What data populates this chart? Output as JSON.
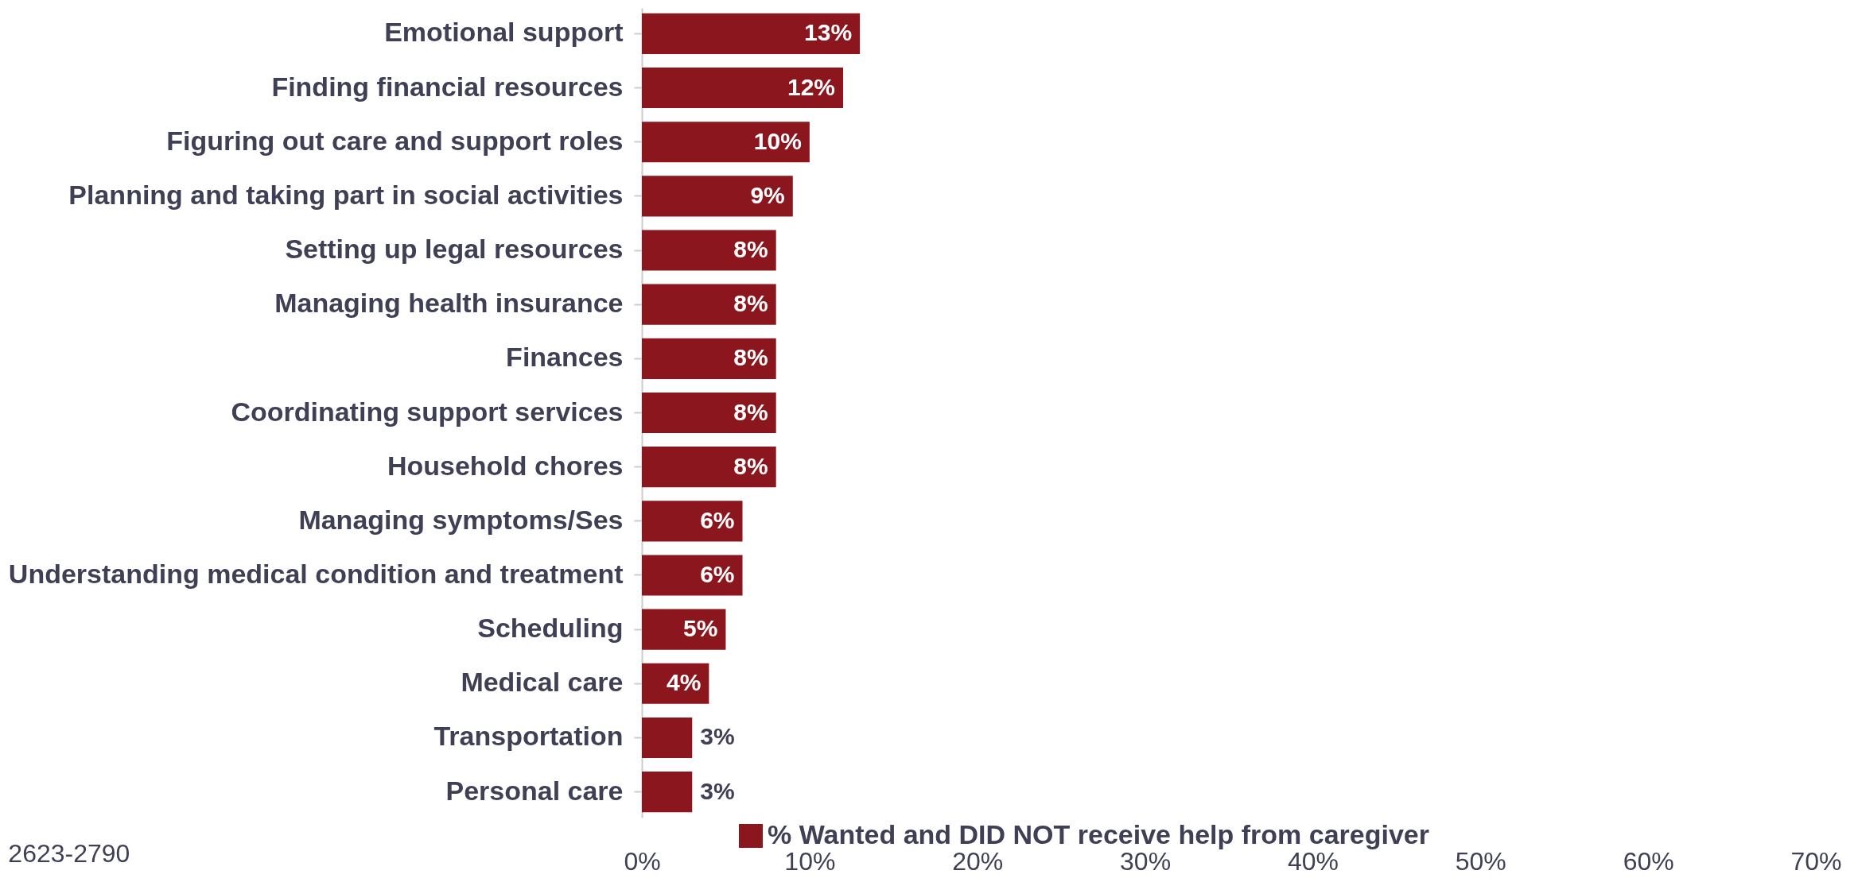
{
  "chart_data": {
    "type": "bar",
    "orientation": "horizontal",
    "categories": [
      "Emotional support",
      "Finding financial resources",
      "Figuring out care and support roles",
      "Planning and taking part in social activities",
      "Setting up legal resources",
      "Managing health insurance",
      "Finances",
      "Coordinating support services",
      "Household chores",
      "Managing symptoms/Ses",
      "Understanding medical condition and treatment",
      "Scheduling",
      "Medical care",
      "Transportation",
      "Personal care"
    ],
    "series": [
      {
        "name": "% Wanted and DID NOT receive help from caregiver",
        "color": "#8b161d",
        "values": [
          13,
          12,
          10,
          9,
          8,
          8,
          8,
          8,
          8,
          6,
          6,
          5,
          4,
          3,
          3
        ]
      }
    ],
    "value_labels": [
      "13%",
      "12%",
      "10%",
      "9%",
      "8%",
      "8%",
      "8%",
      "8%",
      "8%",
      "6%",
      "6%",
      "5%",
      "4%",
      "3%",
      "3%"
    ],
    "xlim": [
      0,
      70
    ],
    "xticks": [
      {
        "value": 0,
        "label": "0%"
      },
      {
        "value": 10,
        "label": "10%"
      },
      {
        "value": 20,
        "label": "20%"
      },
      {
        "value": 30,
        "label": "30%"
      },
      {
        "value": 40,
        "label": "40%"
      },
      {
        "value": 50,
        "label": "50%"
      },
      {
        "value": 60,
        "label": "60%"
      },
      {
        "value": 70,
        "label": "70%"
      }
    ],
    "grid": false,
    "legend": "bottom",
    "annotations": [
      "2623-2790"
    ]
  }
}
